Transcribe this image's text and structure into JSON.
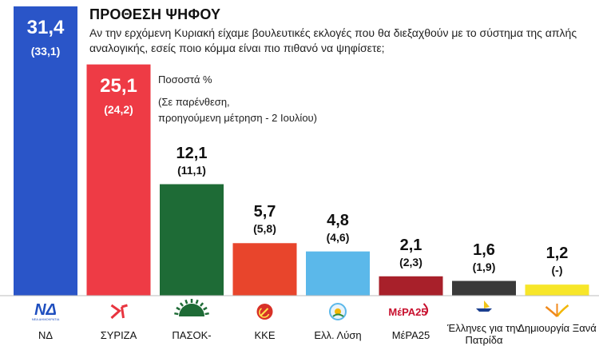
{
  "title": "ΠΡΟΘΕΣΗ ΨΗΦΟΥ",
  "subtitle": "Αν την ερχόμενη Κυριακή είχαμε βουλευτικές εκλογές που θα διεξαχθούν με το σύστημα της απλής αναλογικής, εσείς ποιο κόμμα είναι πιο πιθανό να ψηφίσετε;",
  "note": {
    "unit": "Ποσοστά %",
    "paren": "(Σε παρένθεση,",
    "previous": "προηγούμενη μέτρηση - 2 Ιουλίου)"
  },
  "logos": {
    "nd_text": "ΝΔ",
    "nd_sub": "ΝΕΑ ΔΗΜΟΚΡΑΤΙΑ",
    "mera_text": "ΜέΡΑ25"
  },
  "chart_data": {
    "type": "bar",
    "title": "ΠΡΟΘΕΣΗ ΨΗΦΟΥ",
    "unit": "Ποσοστά %",
    "categories": [
      "ΝΔ",
      "ΣΥΡΙΖΑ",
      "ΠΑΣΟΚ-",
      "ΚΚΕ",
      "Ελλ. Λύση",
      "ΜέΡΑ25",
      "Έλληνες για την Πατρίδα",
      "Δημιουργία Ξανά"
    ],
    "values": [
      31.4,
      25.1,
      12.1,
      5.7,
      4.8,
      2.1,
      1.6,
      1.2
    ],
    "value_labels": [
      "31,4",
      "25,1",
      "12,1",
      "5,7",
      "4,8",
      "2,1",
      "1,6",
      "1,2"
    ],
    "previous_labels": [
      "(33,1)",
      "(24,2)",
      "(11,1)",
      "(5,8)",
      "(4,6)",
      "(2,3)",
      "(1,9)",
      "(-)"
    ],
    "colors": [
      "#2a55c8",
      "#ee3b45",
      "#1e6b36",
      "#e8452c",
      "#5bb8ea",
      "#a8202a",
      "#3a3a3a",
      "#f7e629"
    ],
    "icons": [
      "nd-logo",
      "syriza-logo",
      "pasok-sun-logo",
      "kke-hammer-sickle-logo",
      "elliniki-lysi-logo",
      "mera25-logo",
      "ellines-patrida-logo",
      "dimiourgia-xana-logo"
    ],
    "ylim": [
      0,
      31.4
    ],
    "grid": false,
    "legend": "none"
  }
}
